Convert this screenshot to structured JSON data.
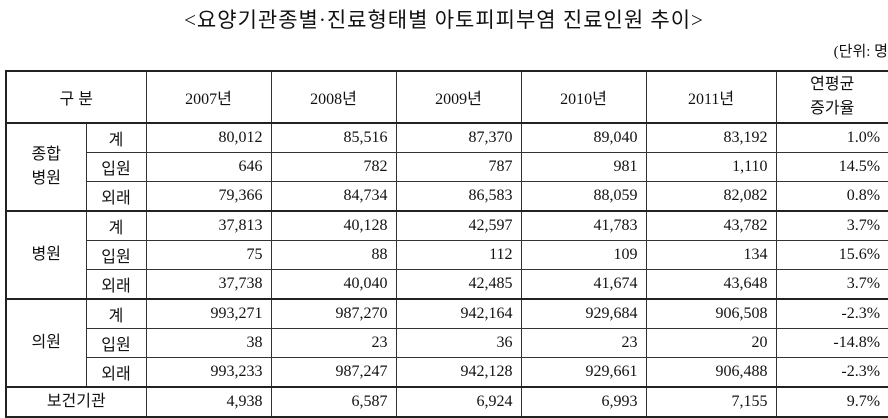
{
  "header": {
    "title": "<요양기관종별·진료형태별 아토피피부염 진료인원 추이>",
    "unit": "(단위: 명"
  },
  "table": {
    "columns": {
      "category": "구 분",
      "years": [
        "2007년",
        "2008년",
        "2009년",
        "2010년",
        "2011년"
      ],
      "rate": [
        "연평균",
        "증가율"
      ]
    },
    "groups": [
      {
        "name": [
          "종합",
          "병원"
        ],
        "rows": [
          {
            "type": "계",
            "values": [
              "80,012",
              "85,516",
              "87,370",
              "89,040",
              "83,192"
            ],
            "rate": "1.0%"
          },
          {
            "type": "입원",
            "values": [
              "646",
              "782",
              "787",
              "981",
              "1,110"
            ],
            "rate": "14.5%"
          },
          {
            "type": "외래",
            "values": [
              "79,366",
              "84,734",
              "86,583",
              "88,059",
              "82,082"
            ],
            "rate": "0.8%"
          }
        ]
      },
      {
        "name": [
          "병원"
        ],
        "rows": [
          {
            "type": "계",
            "values": [
              "37,813",
              "40,128",
              "42,597",
              "41,783",
              "43,782"
            ],
            "rate": "3.7%"
          },
          {
            "type": "입원",
            "values": [
              "75",
              "88",
              "112",
              "109",
              "134"
            ],
            "rate": "15.6%"
          },
          {
            "type": "외래",
            "values": [
              "37,738",
              "40,040",
              "42,485",
              "41,674",
              "43,648"
            ],
            "rate": "3.7%"
          }
        ]
      },
      {
        "name": [
          "의원"
        ],
        "rows": [
          {
            "type": "계",
            "values": [
              "993,271",
              "987,270",
              "942,164",
              "929,684",
              "906,508"
            ],
            "rate": "-2.3%"
          },
          {
            "type": "입원",
            "values": [
              "38",
              "23",
              "36",
              "23",
              "20"
            ],
            "rate": "-14.8%"
          },
          {
            "type": "외래",
            "values": [
              "993,233",
              "987,247",
              "942,128",
              "929,661",
              "906,488"
            ],
            "rate": "-2.3%"
          }
        ]
      },
      {
        "name": [
          "보건기관"
        ],
        "rows": [
          {
            "type": null,
            "values": [
              "4,938",
              "6,587",
              "6,924",
              "6,993",
              "7,155"
            ],
            "rate": "9.7%"
          }
        ]
      }
    ]
  }
}
